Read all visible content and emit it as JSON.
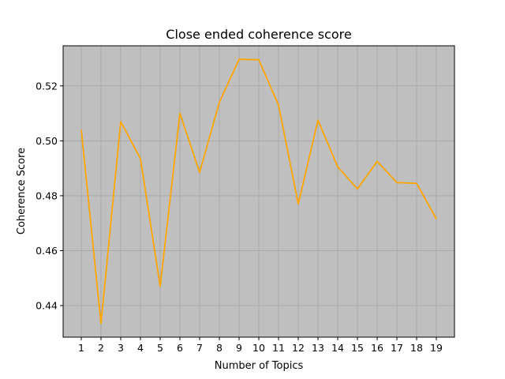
{
  "chart_data": {
    "type": "line",
    "title": "Close ended coherence score",
    "xlabel": "Number of Topics",
    "ylabel": "Coherence Score",
    "x": [
      1,
      2,
      3,
      4,
      5,
      6,
      7,
      8,
      9,
      10,
      11,
      12,
      13,
      14,
      15,
      16,
      17,
      18,
      19
    ],
    "series": [
      {
        "values": [
          0.504,
          0.4335,
          0.507,
          0.4935,
          0.447,
          0.51,
          0.4885,
          0.514,
          0.5297,
          0.5295,
          0.513,
          0.477,
          0.5075,
          0.4905,
          0.4825,
          0.4925,
          0.4848,
          0.4845,
          0.4715
        ],
        "color": "#FFA500"
      }
    ],
    "xlim": [
      0.08,
      19.92
    ],
    "ylim": [
      0.4285,
      0.5346
    ],
    "yticks": [
      0.44,
      0.46,
      0.48,
      0.5,
      0.52
    ],
    "ytick_labels": [
      "0.44",
      "0.46",
      "0.48",
      "0.50",
      "0.52"
    ],
    "grid": true,
    "plot_background": "#BFBFBF",
    "grid_color": "#A6A6A6"
  }
}
